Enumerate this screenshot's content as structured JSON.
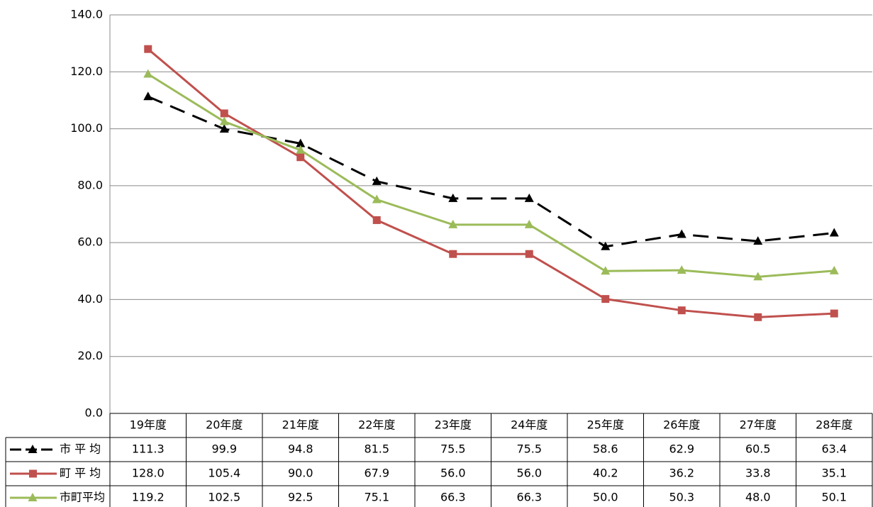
{
  "chart_data": {
    "type": "line",
    "categories": [
      "19年度",
      "20年度",
      "21年度",
      "22年度",
      "23年度",
      "24年度",
      "25年度",
      "26年度",
      "27年度",
      "28年度"
    ],
    "series": [
      {
        "name": "市 平 均",
        "color": "#000000",
        "dashed": true,
        "marker": "triangle",
        "values": [
          111.3,
          99.9,
          94.8,
          81.5,
          75.5,
          75.5,
          58.6,
          62.9,
          60.5,
          63.4
        ],
        "value_labels": [
          "111.3",
          "99.9",
          "94.8",
          "81.5",
          "75.5",
          "75.5",
          "58.6",
          "62.9",
          "60.5",
          "63.4"
        ]
      },
      {
        "name": "町 平 均",
        "color": "#c0504d",
        "dashed": false,
        "marker": "square",
        "values": [
          128.0,
          105.4,
          90.0,
          67.9,
          56.0,
          56.0,
          40.2,
          36.2,
          33.8,
          35.1
        ],
        "value_labels": [
          "128.0",
          "105.4",
          "90.0",
          "67.9",
          "56.0",
          "56.0",
          "40.2",
          "36.2",
          "33.8",
          "35.1"
        ]
      },
      {
        "name": "市町平均",
        "color": "#9bbb59",
        "dashed": false,
        "marker": "triangle",
        "values": [
          119.2,
          102.5,
          92.5,
          75.1,
          66.3,
          66.3,
          50.0,
          50.3,
          48.0,
          50.1
        ],
        "value_labels": [
          "119.2",
          "102.5",
          "92.5",
          "75.1",
          "66.3",
          "66.3",
          "50.0",
          "50.3",
          "48.0",
          "50.1"
        ]
      }
    ],
    "ylim": [
      0,
      140
    ],
    "yticks": [
      {
        "value": 0,
        "label": "0.0"
      },
      {
        "value": 20,
        "label": "20.0"
      },
      {
        "value": 40,
        "label": "40.0"
      },
      {
        "value": 60,
        "label": "60.0"
      },
      {
        "value": 80,
        "label": "80.0"
      },
      {
        "value": 100,
        "label": "100.0"
      },
      {
        "value": 120,
        "label": "120.0"
      },
      {
        "value": 140,
        "label": "140.0"
      }
    ],
    "grid": true
  }
}
